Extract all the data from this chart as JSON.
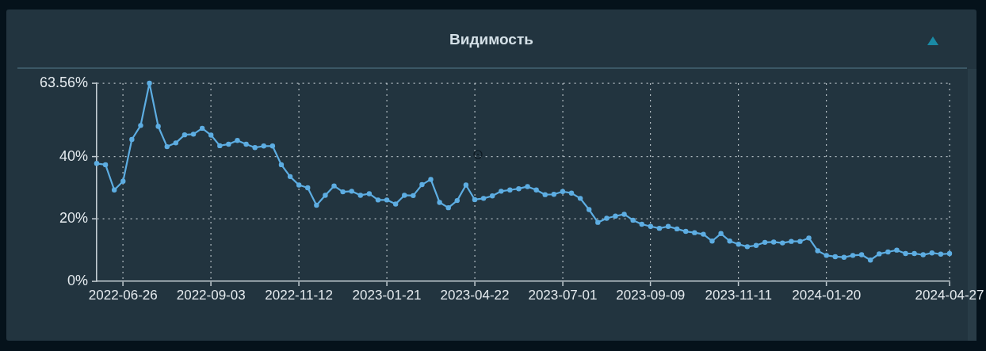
{
  "chart_data": {
    "type": "line",
    "title": "Видимость",
    "categories": [
      null,
      null,
      null,
      "2022-06-26",
      null,
      null,
      null,
      null,
      null,
      null,
      null,
      null,
      null,
      "2022-09-03",
      null,
      null,
      null,
      null,
      null,
      null,
      null,
      null,
      null,
      "2022-11-12",
      null,
      null,
      null,
      null,
      null,
      null,
      null,
      null,
      null,
      "2023-01-21",
      null,
      null,
      null,
      null,
      null,
      null,
      null,
      null,
      null,
      "2023-04-22",
      null,
      null,
      null,
      null,
      null,
      null,
      null,
      null,
      null,
      "2023-07-01",
      null,
      null,
      null,
      null,
      null,
      null,
      null,
      null,
      null,
      "2023-09-09",
      null,
      null,
      null,
      null,
      null,
      null,
      null,
      null,
      null,
      "2023-11-11",
      null,
      null,
      null,
      null,
      null,
      null,
      null,
      null,
      null,
      "2024-01-20",
      null,
      null,
      null,
      null,
      null,
      null,
      null,
      null,
      null,
      null,
      null,
      null,
      null,
      "2024-04-27"
    ],
    "values": [
      37.8,
      37.4,
      29.3,
      32.1,
      45.5,
      50,
      63.56,
      49.7,
      43.2,
      44.4,
      47,
      47.2,
      49.1,
      46.9,
      43.5,
      44,
      45.2,
      44,
      42.9,
      43.4,
      43.4,
      37.4,
      33.6,
      30.9,
      30,
      24.4,
      27.6,
      30.6,
      28.7,
      28.9,
      27.6,
      28.1,
      26.1,
      26.1,
      24.8,
      27.6,
      27.5,
      31,
      32.7,
      25.3,
      23.6,
      25.9,
      30.9,
      26.2,
      26.6,
      27.4,
      28.9,
      29.3,
      29.7,
      30.4,
      29.3,
      27.8,
      27.9,
      28.8,
      28.3,
      26.6,
      23,
      18.9,
      20.2,
      20.9,
      21.5,
      19.6,
      18.3,
      17.6,
      17,
      17.6,
      16.8,
      16,
      15.6,
      15.1,
      12.9,
      15.3,
      12.9,
      11.9,
      11.1,
      11.5,
      12.5,
      12.6,
      12.3,
      12.8,
      12.8,
      13.9,
      9.8,
      8.3,
      7.9,
      7.7,
      8.3,
      8.5,
      6.8,
      8.8,
      9.4,
      10,
      8.9,
      8.9,
      8.5,
      9.1,
      8.7,
      8.9
    ],
    "color": "#5dade2",
    "ylim": [
      0,
      63.56
    ],
    "yticks": [
      {
        "value": 0,
        "label": "0%"
      },
      {
        "value": 20,
        "label": "20%"
      },
      {
        "value": 40,
        "label": "40%"
      },
      {
        "value": 63.56,
        "label": "63.56%"
      }
    ],
    "grid": true,
    "marker": "circle"
  }
}
